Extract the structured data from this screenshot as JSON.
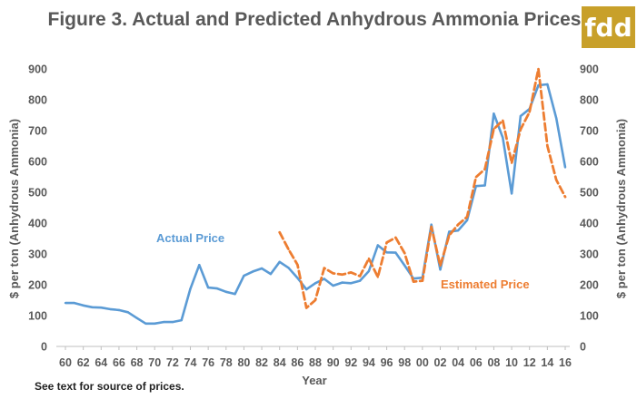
{
  "chart_data": {
    "type": "line",
    "title": "Figure 3.  Actual and Predicted Anhydrous Ammonia Prices",
    "xlabel": "Year",
    "ylabel_left": "$ per ton (Anhydrous Ammonia)",
    "ylabel_right": "$ per ton (Anhydrous Ammonia)",
    "ylim": [
      0,
      900
    ],
    "xlim": [
      1960,
      2016
    ],
    "yticks": [
      0,
      100,
      200,
      300,
      400,
      500,
      600,
      700,
      800,
      900
    ],
    "xticks": [
      1960,
      1962,
      1964,
      1966,
      1968,
      1970,
      1972,
      1974,
      1976,
      1978,
      1980,
      1982,
      1984,
      1986,
      1988,
      1990,
      1992,
      1994,
      1996,
      1998,
      2000,
      2002,
      2004,
      2006,
      2008,
      2010,
      2012,
      2014,
      2016
    ],
    "xtick_labels": [
      "60",
      "62",
      "64",
      "66",
      "68",
      "70",
      "72",
      "74",
      "76",
      "78",
      "80",
      "82",
      "84",
      "86",
      "88",
      "90",
      "92",
      "94",
      "96",
      "98",
      "00",
      "02",
      "04",
      "06",
      "08",
      "10",
      "12",
      "14",
      "16"
    ],
    "grid": false,
    "note": "See text for source of prices.",
    "series": [
      {
        "name": "Actual Price",
        "color": "#5b9bd5",
        "style": "solid",
        "x": [
          1960,
          1961,
          1962,
          1963,
          1964,
          1965,
          1966,
          1967,
          1968,
          1969,
          1970,
          1971,
          1972,
          1973,
          1974,
          1975,
          1976,
          1977,
          1978,
          1979,
          1980,
          1981,
          1982,
          1983,
          1984,
          1985,
          1986,
          1987,
          1988,
          1989,
          1990,
          1991,
          1992,
          1993,
          1994,
          1995,
          1996,
          1997,
          1998,
          1999,
          2000,
          2001,
          2002,
          2003,
          2004,
          2005,
          2006,
          2007,
          2008,
          2009,
          2010,
          2011,
          2012,
          2013,
          2014,
          2015,
          2016
        ],
        "values": [
          141,
          141,
          133,
          127,
          126,
          121,
          118,
          111,
          92,
          74,
          74,
          79,
          79,
          85,
          187,
          264,
          191,
          188,
          177,
          170,
          229,
          243,
          253,
          235,
          274,
          255,
          222,
          185,
          205,
          219,
          197,
          207,
          205,
          213,
          244,
          328,
          305,
          304,
          263,
          220,
          223,
          395,
          249,
          372,
          376,
          409,
          520,
          522,
          755,
          677,
          496,
          747,
          770,
          847,
          850,
          740,
          581
        ]
      },
      {
        "name": "Estimated Price",
        "color": "#ed7d31",
        "style": "dashed",
        "x": [
          1984,
          1985,
          1986,
          1987,
          1988,
          1989,
          1990,
          1991,
          1992,
          1993,
          1994,
          1995,
          1996,
          1997,
          1998,
          1999,
          2000,
          2001,
          2002,
          2003,
          2004,
          2005,
          2006,
          2007,
          2008,
          2009,
          2010,
          2011,
          2012,
          2013,
          2014,
          2015,
          2016
        ],
        "values": [
          370,
          315,
          265,
          125,
          150,
          254,
          237,
          233,
          240,
          228,
          285,
          225,
          337,
          353,
          303,
          210,
          213,
          388,
          262,
          360,
          395,
          420,
          549,
          575,
          705,
          733,
          595,
          704,
          760,
          900,
          650,
          540,
          485
        ]
      }
    ]
  },
  "labels": {
    "actual": "Actual Price",
    "estimated": "Estimated Price"
  },
  "logo": {
    "text": "fdd",
    "color": "#c8a02a"
  }
}
